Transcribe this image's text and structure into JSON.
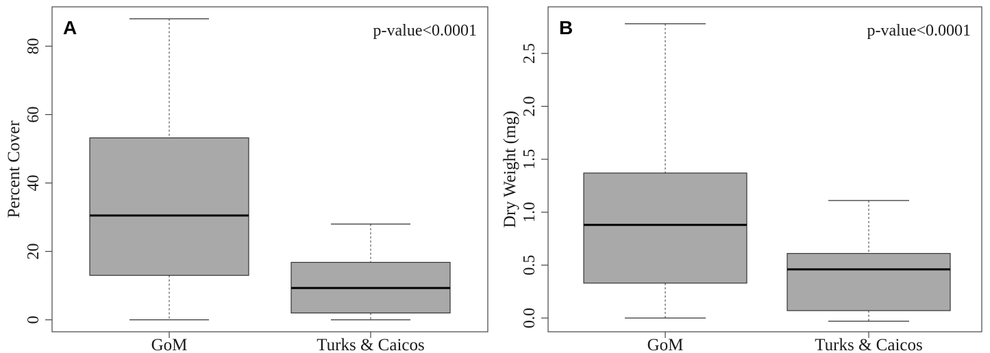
{
  "chart_data": [
    {
      "type": "box",
      "panel_label": "A",
      "ylabel": "Percent Cover",
      "annotation": "p-value<0.0001",
      "annotation_position": "top-right",
      "ylim": [
        -3.5,
        91.5
      ],
      "yticks": [
        0,
        20,
        40,
        60,
        80
      ],
      "ytick_labels": [
        "0",
        "20",
        "40",
        "60",
        "80"
      ],
      "categories": [
        "GoM",
        "Turks & Caicos"
      ],
      "box_color": "#a9a9a9",
      "boxes": [
        {
          "category": "GoM",
          "whisker_low": 0,
          "q1": 13,
          "median": 30.5,
          "q3": 53.2,
          "whisker_high": 88
        },
        {
          "category": "Turks & Caicos",
          "whisker_low": 0,
          "q1": 2,
          "median": 9.3,
          "q3": 16.8,
          "whisker_high": 28
        }
      ]
    },
    {
      "type": "box",
      "panel_label": "B",
      "ylabel": "Dry Weight (mg)",
      "annotation": "p-value<0.0001",
      "annotation_position": "top-right",
      "ylim": [
        -0.13,
        2.94
      ],
      "yticks": [
        0.0,
        0.5,
        1.0,
        1.5,
        2.0,
        2.5
      ],
      "ytick_labels": [
        "0.0",
        "0.5",
        "1.0",
        "1.5",
        "2.0",
        "2.5"
      ],
      "categories": [
        "GoM",
        "Turks & Caicos"
      ],
      "box_color": "#a9a9a9",
      "boxes": [
        {
          "category": "GoM",
          "whisker_low": 0.0,
          "q1": 0.33,
          "median": 0.88,
          "q3": 1.37,
          "whisker_high": 2.78
        },
        {
          "category": "Turks & Caicos",
          "whisker_low": -0.03,
          "q1": 0.07,
          "median": 0.46,
          "q3": 0.61,
          "whisker_high": 1.11
        }
      ]
    }
  ]
}
